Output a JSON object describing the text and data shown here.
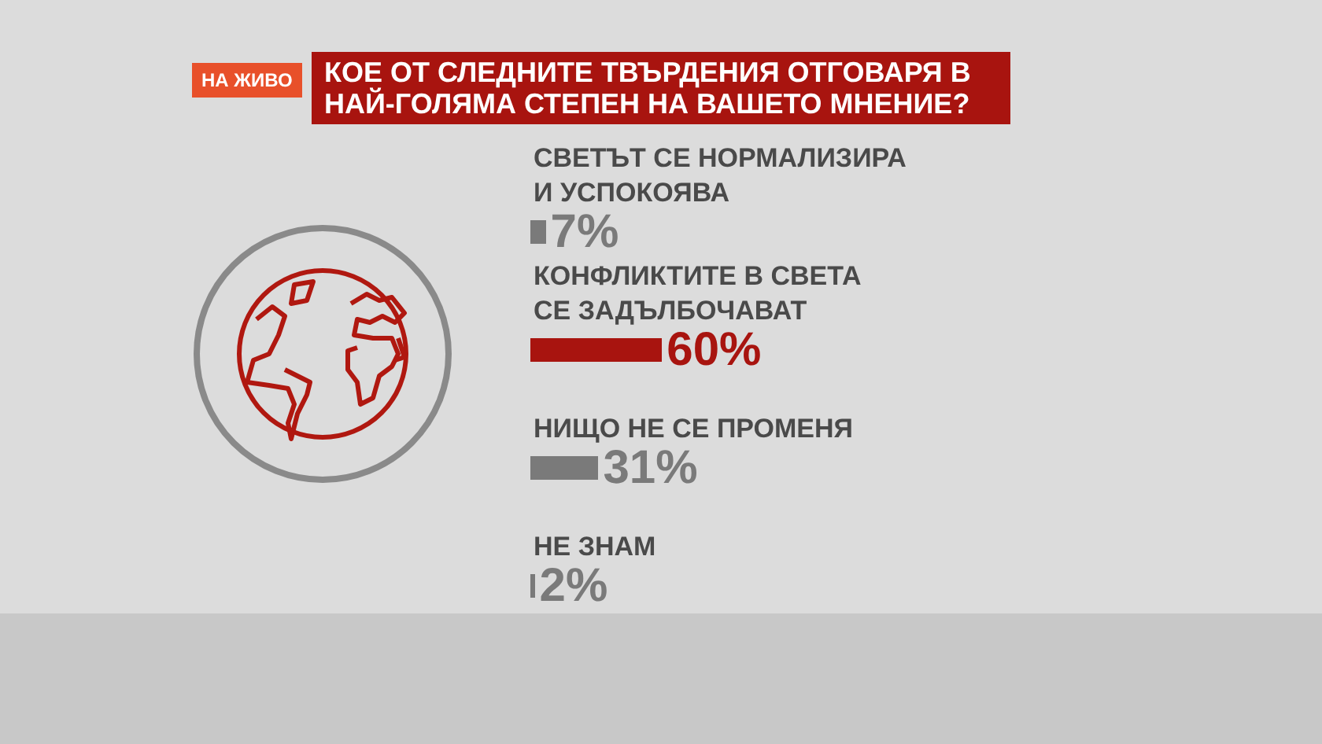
{
  "chart_data": {
    "type": "bar",
    "orientation": "horizontal",
    "title": "КОЕ ОТ СЛЕДНИТЕ ТВЪРДЕНИЯ ОТГОВАРЯ В НАЙ-ГОЛЯМА СТЕПЕН НА ВАШЕТО МНЕНИЕ?",
    "categories": [
      "СВЕТЪТ СЕ НОРМАЛИЗИРА И УСПОКОЯВА",
      "КОНФЛИКТИТЕ В СВЕТА СЕ ЗАДЪЛБОЧАВАТ",
      "НИЩО НЕ СЕ ПРОМЕНЯ",
      "НЕ ЗНАМ"
    ],
    "values": [
      7,
      60,
      31,
      2
    ],
    "colors": [
      "#7a7a7a",
      "#a8140f",
      "#7a7a7a",
      "#7a7a7a"
    ],
    "value_labels": [
      "7%",
      "60%",
      "31%",
      "2%"
    ],
    "tick_labels": "y",
    "annotations": [
      "НА ЖИВО"
    ]
  }
}
